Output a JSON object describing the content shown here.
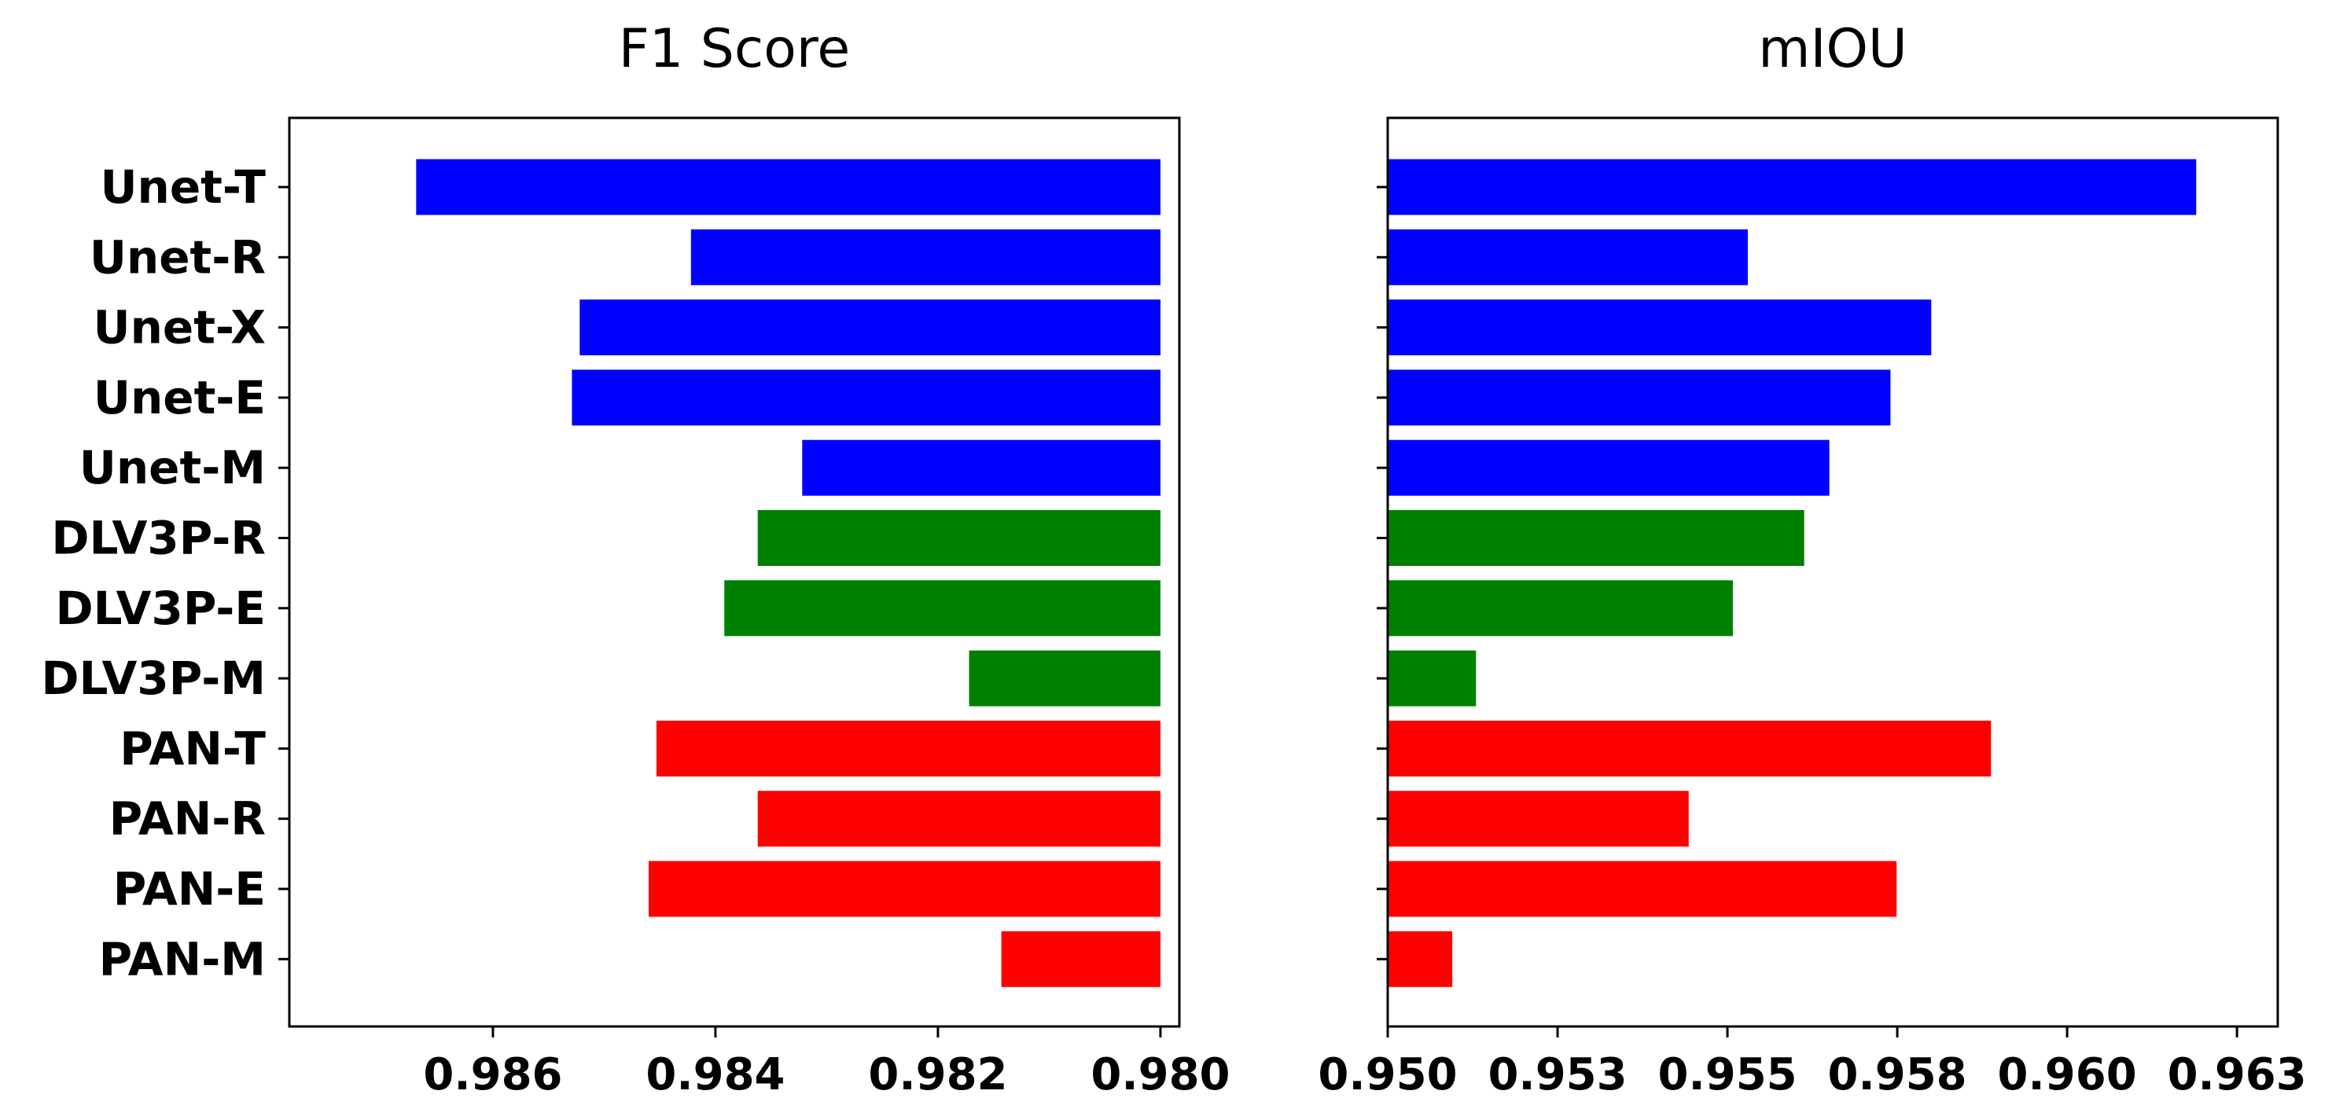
{
  "chart_data": [
    {
      "type": "bar",
      "orientation": "horizontal",
      "title": "F1 Score",
      "xlabel": "",
      "ylabel": "",
      "categories": [
        "Unet-T",
        "Unet-R",
        "Unet-X",
        "Unet-E",
        "Unet-M",
        "DLV3P-R",
        "DLV3P-E",
        "DLV3P-M",
        "PAN-T",
        "PAN-R",
        "PAN-E",
        "PAN-M"
      ],
      "values": [
        0.98669,
        0.98422,
        0.98522,
        0.98529,
        0.98322,
        0.98362,
        0.98392,
        0.98172,
        0.98453,
        0.98362,
        0.9846,
        0.98143
      ],
      "colors": [
        "#0000ff",
        "#0000ff",
        "#0000ff",
        "#0000ff",
        "#0000ff",
        "#008000",
        "#008000",
        "#008000",
        "#ff0000",
        "#ff0000",
        "#ff0000",
        "#ff0000"
      ],
      "xlim": [
        0.98783,
        0.97983
      ],
      "xaxis_inverted": true,
      "xticks": [
        0.986,
        0.984,
        0.982,
        0.98
      ],
      "xtick_labels": [
        "0.986",
        "0.984",
        "0.982",
        "0.980"
      ],
      "grid": false,
      "legend": false
    },
    {
      "type": "bar",
      "orientation": "horizontal",
      "title": "mIOU",
      "xlabel": "",
      "ylabel": "",
      "categories": [
        "Unet-T",
        "Unet-R",
        "Unet-X",
        "Unet-E",
        "Unet-M",
        "DLV3P-R",
        "DLV3P-E",
        "DLV3P-M",
        "PAN-T",
        "PAN-R",
        "PAN-E",
        "PAN-M"
      ],
      "values": [
        0.9619,
        0.9553,
        0.958,
        0.9574,
        0.9565,
        0.95613,
        0.95508,
        0.9513,
        0.95888,
        0.95443,
        0.95749,
        0.95095
      ],
      "colors": [
        "#0000ff",
        "#0000ff",
        "#0000ff",
        "#0000ff",
        "#0000ff",
        "#008000",
        "#008000",
        "#008000",
        "#ff0000",
        "#ff0000",
        "#ff0000",
        "#ff0000"
      ],
      "xlim": [
        0.95,
        0.9631
      ],
      "xaxis_inverted": false,
      "xticks": [
        0.95,
        0.9525,
        0.955,
        0.9575,
        0.96,
        0.9625
      ],
      "xtick_labels": [
        "0.950",
        "0.953",
        "0.955",
        "0.958",
        "0.960",
        "0.963"
      ],
      "grid": false,
      "legend": false
    }
  ]
}
